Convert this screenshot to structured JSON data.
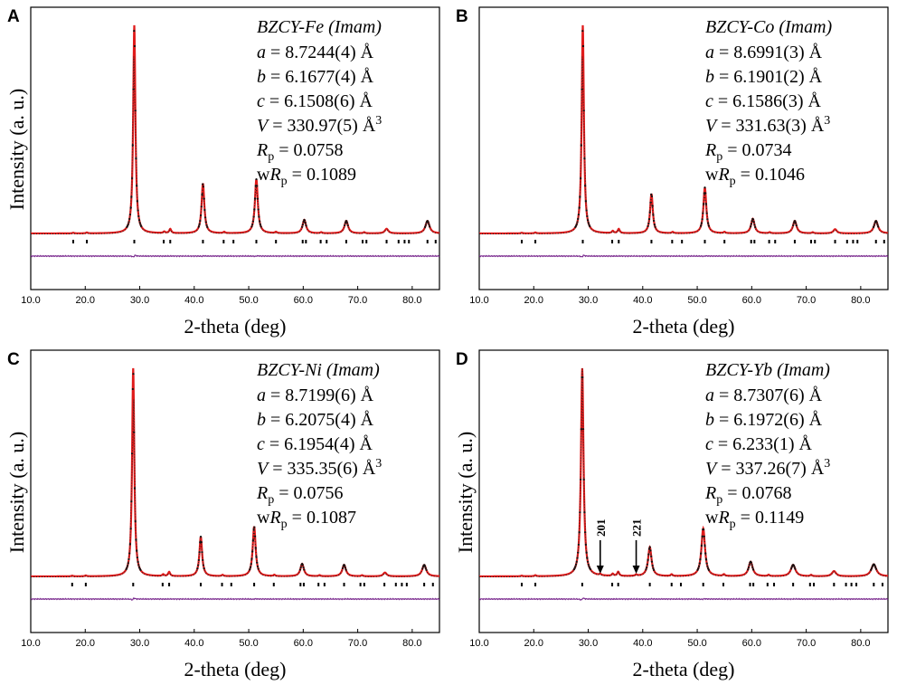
{
  "chart_data": [
    {
      "type": "line",
      "panel_label": "A",
      "title": "BZCY-Fe (Imam)",
      "xlabel": "2-theta (deg)",
      "ylabel": "Intensity (a. u.)",
      "xlim": [
        10,
        85
      ],
      "xticks": [
        "10.0",
        "20.0",
        "30.0",
        "40.0",
        "50.0",
        "60.0",
        "70.0",
        "80.0"
      ],
      "params": [
        {
          "sym": "a",
          "text": " = 8.7244(4) Å"
        },
        {
          "sym": "b",
          "text": " = 6.1677(4) Å"
        },
        {
          "sym": "c",
          "text": " = 6.1508(6) Å"
        },
        {
          "sym": "V",
          "text": " = 330.97(5) Å",
          "sup": "3"
        },
        {
          "sym": "R",
          "sub": "p",
          "text": " = 0.0758"
        },
        {
          "pre": "w",
          "sym": "R",
          "sub": "p",
          "text": " = 0.1089"
        }
      ],
      "peaks": [
        {
          "x": 17.8,
          "h": 0.003,
          "w": 0.18
        },
        {
          "x": 20.3,
          "h": 0.004,
          "w": 0.18
        },
        {
          "x": 29.0,
          "h": 1.0,
          "w": 0.24
        },
        {
          "x": 34.5,
          "h": 0.007,
          "w": 0.2
        },
        {
          "x": 35.6,
          "h": 0.02,
          "w": 0.22
        },
        {
          "x": 41.6,
          "h": 0.24,
          "w": 0.3
        },
        {
          "x": 45.5,
          "h": 0.006,
          "w": 0.2
        },
        {
          "x": 51.4,
          "h": 0.26,
          "w": 0.32
        },
        {
          "x": 55.0,
          "h": 0.006,
          "w": 0.2
        },
        {
          "x": 60.2,
          "h": 0.065,
          "w": 0.38
        },
        {
          "x": 63.3,
          "h": 0.005,
          "w": 0.2
        },
        {
          "x": 67.9,
          "h": 0.06,
          "w": 0.4
        },
        {
          "x": 71.2,
          "h": 0.005,
          "w": 0.2
        },
        {
          "x": 75.3,
          "h": 0.022,
          "w": 0.38
        },
        {
          "x": 82.8,
          "h": 0.06,
          "w": 0.45
        }
      ],
      "reflections": [
        17.8,
        20.3,
        29.0,
        34.4,
        35.6,
        41.6,
        45.4,
        47.2,
        51.4,
        55.0,
        59.9,
        60.5,
        63.2,
        64.3,
        67.9,
        70.9,
        71.6,
        75.3,
        77.5,
        78.6,
        79.4,
        82.8,
        84.3
      ],
      "annotations": []
    },
    {
      "type": "line",
      "panel_label": "B",
      "title": "BZCY-Co (Imam)",
      "xlabel": "2-theta (deg)",
      "ylabel": "",
      "xlim": [
        10,
        85
      ],
      "xticks": [
        "10.0",
        "20.0",
        "30.0",
        "40.0",
        "50.0",
        "60.0",
        "70.0",
        "80.0"
      ],
      "params": [
        {
          "sym": "a",
          "text": " = 8.6991(3) Å"
        },
        {
          "sym": "b",
          "text": " = 6.1901(2) Å"
        },
        {
          "sym": "c",
          "text": " = 6.1586(3) Å"
        },
        {
          "sym": "V",
          "text": " = 331.63(3) Å",
          "sup": "3"
        },
        {
          "sym": "R",
          "sub": "p",
          "text": " = 0.0734"
        },
        {
          "pre": "w",
          "sym": "R",
          "sub": "p",
          "text": " = 0.1046"
        }
      ],
      "peaks": [
        {
          "x": 17.8,
          "h": 0.003,
          "w": 0.18
        },
        {
          "x": 20.3,
          "h": 0.004,
          "w": 0.18
        },
        {
          "x": 29.0,
          "h": 1.0,
          "w": 0.24
        },
        {
          "x": 34.5,
          "h": 0.01,
          "w": 0.2
        },
        {
          "x": 35.6,
          "h": 0.02,
          "w": 0.22
        },
        {
          "x": 41.6,
          "h": 0.19,
          "w": 0.3
        },
        {
          "x": 45.5,
          "h": 0.006,
          "w": 0.2
        },
        {
          "x": 51.4,
          "h": 0.22,
          "w": 0.32
        },
        {
          "x": 55.0,
          "h": 0.006,
          "w": 0.2
        },
        {
          "x": 60.2,
          "h": 0.07,
          "w": 0.38
        },
        {
          "x": 63.3,
          "h": 0.005,
          "w": 0.2
        },
        {
          "x": 67.9,
          "h": 0.06,
          "w": 0.4
        },
        {
          "x": 71.2,
          "h": 0.005,
          "w": 0.2
        },
        {
          "x": 75.3,
          "h": 0.02,
          "w": 0.38
        },
        {
          "x": 82.8,
          "h": 0.06,
          "w": 0.45
        }
      ],
      "reflections": [
        17.8,
        20.3,
        29.0,
        34.4,
        35.6,
        41.6,
        45.4,
        47.2,
        51.4,
        55.0,
        59.9,
        60.5,
        63.2,
        64.3,
        67.9,
        70.9,
        71.6,
        75.3,
        77.5,
        78.6,
        79.4,
        82.8,
        84.3
      ],
      "annotations": []
    },
    {
      "type": "line",
      "panel_label": "C",
      "title": "BZCY-Ni (Imam)",
      "xlabel": "2-theta (deg)",
      "ylabel": "Intensity (a. u.)",
      "xlim": [
        10,
        85
      ],
      "xticks": [
        "10.0",
        "20.0",
        "30.0",
        "40.0",
        "50.0",
        "60.0",
        "70.0",
        "80.0"
      ],
      "params": [
        {
          "sym": "a",
          "text": " = 8.7199(6) Å"
        },
        {
          "sym": "b",
          "text": " = 6.2075(4) Å"
        },
        {
          "sym": "c",
          "text": " = 6.1954(4) Å"
        },
        {
          "sym": "V",
          "text": " = 335.35(6) Å",
          "sup": "3"
        },
        {
          "sym": "R",
          "sub": "p",
          "text": " = 0.0756"
        },
        {
          "pre": "w",
          "sym": "R",
          "sub": "p",
          "text": " = 0.1087"
        }
      ],
      "peaks": [
        {
          "x": 17.6,
          "h": 0.003,
          "w": 0.18
        },
        {
          "x": 20.1,
          "h": 0.004,
          "w": 0.18
        },
        {
          "x": 28.8,
          "h": 1.0,
          "w": 0.24
        },
        {
          "x": 34.3,
          "h": 0.008,
          "w": 0.2
        },
        {
          "x": 35.4,
          "h": 0.02,
          "w": 0.22
        },
        {
          "x": 41.2,
          "h": 0.19,
          "w": 0.3
        },
        {
          "x": 45.2,
          "h": 0.006,
          "w": 0.2
        },
        {
          "x": 51.0,
          "h": 0.24,
          "w": 0.32
        },
        {
          "x": 54.7,
          "h": 0.006,
          "w": 0.2
        },
        {
          "x": 59.8,
          "h": 0.06,
          "w": 0.38
        },
        {
          "x": 63.0,
          "h": 0.005,
          "w": 0.2
        },
        {
          "x": 67.5,
          "h": 0.055,
          "w": 0.4
        },
        {
          "x": 70.8,
          "h": 0.005,
          "w": 0.2
        },
        {
          "x": 75.0,
          "h": 0.018,
          "w": 0.38
        },
        {
          "x": 82.2,
          "h": 0.055,
          "w": 0.45
        }
      ],
      "reflections": [
        17.6,
        20.1,
        28.8,
        34.2,
        35.4,
        41.2,
        45.1,
        46.8,
        51.0,
        54.6,
        59.5,
        60.1,
        62.8,
        63.9,
        67.5,
        70.5,
        71.2,
        74.9,
        77.0,
        78.1,
        79.0,
        82.2,
        83.8
      ],
      "annotations": []
    },
    {
      "type": "line",
      "panel_label": "D",
      "title": "BZCY-Yb (Imam)",
      "xlabel": "2-theta (deg)",
      "ylabel": "Intensity (a. u.)",
      "xlim": [
        10,
        85
      ],
      "xticks": [
        "10.0",
        "20.0",
        "30.0",
        "40.0",
        "50.0",
        "60.0",
        "70.0",
        "80.0"
      ],
      "params": [
        {
          "sym": "a",
          "text": " = 8.7307(6) Å"
        },
        {
          "sym": "b",
          "text": " = 6.1972(6) Å"
        },
        {
          "sym": "c",
          "text": " = 6.233(1) Å"
        },
        {
          "sym": "V",
          "text": " = 337.26(7) Å",
          "sup": "3"
        },
        {
          "sym": "R",
          "sub": "p",
          "text": " = 0.0768"
        },
        {
          "pre": "w",
          "sym": "R",
          "sub": "p",
          "text": " = 0.1149"
        }
      ],
      "peaks": [
        {
          "x": 17.8,
          "h": 0.003,
          "w": 0.18
        },
        {
          "x": 20.3,
          "h": 0.005,
          "w": 0.18
        },
        {
          "x": 28.9,
          "h": 1.0,
          "w": 0.28
        },
        {
          "x": 32.2,
          "h": 0.006,
          "w": 0.2
        },
        {
          "x": 34.5,
          "h": 0.01,
          "w": 0.2
        },
        {
          "x": 35.5,
          "h": 0.02,
          "w": 0.22
        },
        {
          "x": 38.8,
          "h": 0.006,
          "w": 0.2
        },
        {
          "x": 41.3,
          "h": 0.14,
          "w": 0.38
        },
        {
          "x": 45.3,
          "h": 0.008,
          "w": 0.2
        },
        {
          "x": 51.1,
          "h": 0.23,
          "w": 0.4
        },
        {
          "x": 54.9,
          "h": 0.008,
          "w": 0.2
        },
        {
          "x": 59.8,
          "h": 0.07,
          "w": 0.45
        },
        {
          "x": 63.1,
          "h": 0.006,
          "w": 0.2
        },
        {
          "x": 67.6,
          "h": 0.055,
          "w": 0.5
        },
        {
          "x": 70.9,
          "h": 0.006,
          "w": 0.2
        },
        {
          "x": 75.1,
          "h": 0.025,
          "w": 0.45
        },
        {
          "x": 82.4,
          "h": 0.058,
          "w": 0.55
        }
      ],
      "reflections": [
        17.8,
        20.3,
        28.9,
        34.4,
        35.5,
        41.3,
        45.3,
        47.0,
        51.1,
        54.8,
        59.7,
        60.3,
        62.9,
        64.1,
        67.6,
        70.7,
        71.4,
        75.1,
        77.3,
        78.3,
        79.2,
        82.4,
        84.0
      ],
      "annotations": [
        {
          "label": "201",
          "x": 32.2
        },
        {
          "label": "221",
          "x": 38.8
        }
      ]
    }
  ]
}
